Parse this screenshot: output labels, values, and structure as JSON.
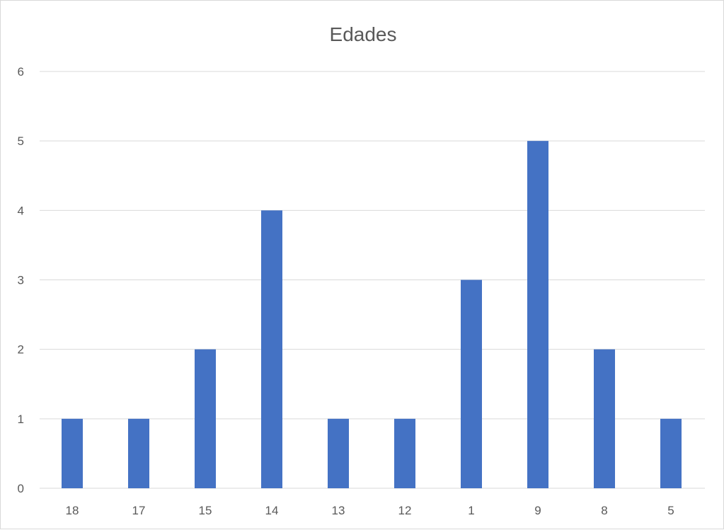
{
  "chart_data": {
    "type": "bar",
    "title": "Edades",
    "xlabel": "",
    "ylabel": "",
    "categories": [
      "18",
      "17",
      "15",
      "14",
      "13",
      "12",
      "1",
      "9",
      "8",
      "5"
    ],
    "values": [
      1,
      1,
      2,
      4,
      1,
      1,
      3,
      5,
      2,
      1
    ],
    "ylim": [
      0,
      6
    ],
    "yticks": [
      "0",
      "1",
      "2",
      "3",
      "4",
      "5",
      "6"
    ],
    "grid": true,
    "legend": "none",
    "bar_color": "#4472C4",
    "gridline_color": "#d9d9d9"
  }
}
